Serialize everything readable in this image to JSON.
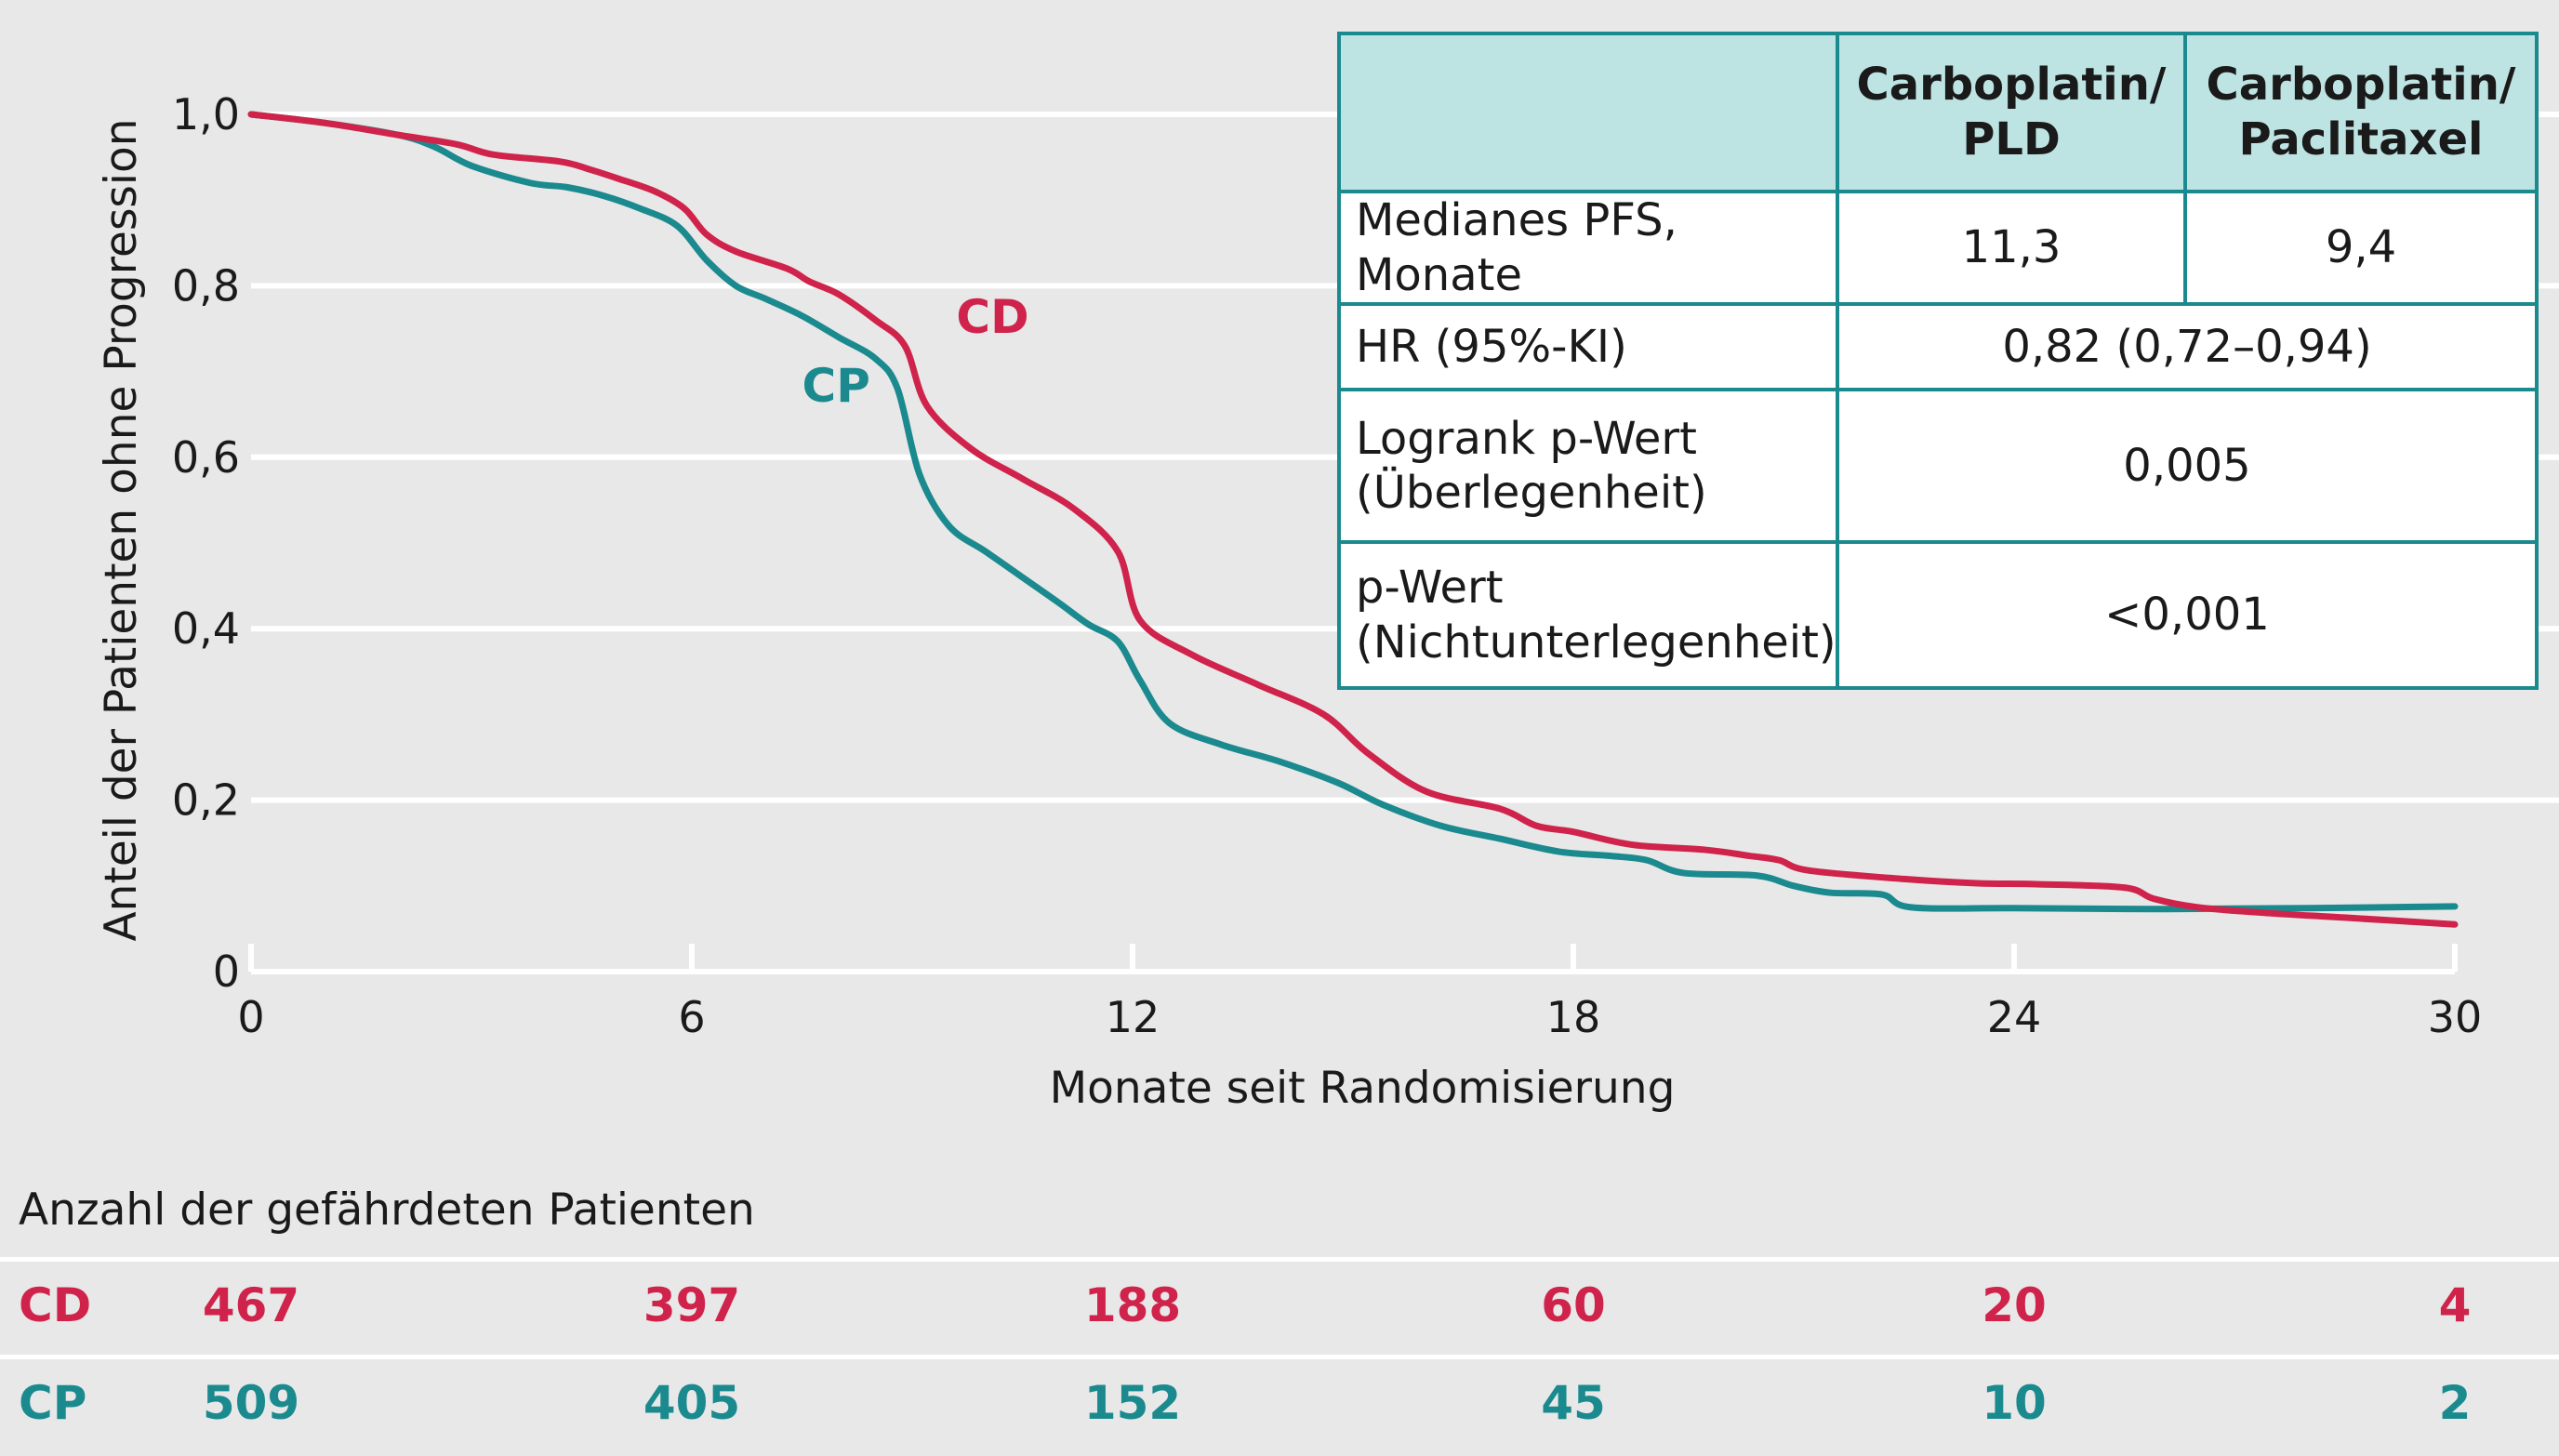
{
  "colors": {
    "CD": "#d0234b",
    "CP": "#1b8a8e",
    "plot_bg": "#e8e8e8",
    "table_header_bg": "#bde4e3",
    "table_border": "#1b8a8e"
  },
  "chart_data": {
    "type": "line",
    "xlabel": "Monate seit Randomisierung",
    "ylabel": "Anteil der Patienten ohne Progression",
    "xlim": [
      0,
      30
    ],
    "ylim": [
      0,
      1.0
    ],
    "x_ticks": [
      0,
      6,
      12,
      18,
      24,
      30
    ],
    "x_tick_labels": [
      "0",
      "6",
      "12",
      "18",
      "24",
      "30"
    ],
    "y_ticks": [
      0,
      0.2,
      0.4,
      0.6,
      0.8,
      1.0
    ],
    "y_tick_labels": [
      "0",
      "0,2",
      "0,4",
      "0,6",
      "0,8",
      "1,0"
    ],
    "grid": "horizontal",
    "series": [
      {
        "name": "CD",
        "x": [
          0,
          1.0,
          2.0,
          2.8,
          3.3,
          4.2,
          4.6,
          5.0,
          5.5,
          5.9,
          6.2,
          6.6,
          7.3,
          7.6,
          8.0,
          8.5,
          8.9,
          9.2,
          9.8,
          10.5,
          11.2,
          11.8,
          12.1,
          12.8,
          13.7,
          14.6,
          15.2,
          16.0,
          17.0,
          17.5,
          18.0,
          18.8,
          19.8,
          20.4,
          20.8,
          21.2,
          22.5,
          23.5,
          24.3,
          25.5,
          25.9,
          26.5,
          27.5,
          28.5,
          30.0
        ],
        "y": [
          1.0,
          0.99,
          0.976,
          0.965,
          0.953,
          0.945,
          0.936,
          0.925,
          0.91,
          0.89,
          0.86,
          0.84,
          0.82,
          0.805,
          0.79,
          0.76,
          0.73,
          0.66,
          0.61,
          0.575,
          0.54,
          0.49,
          0.41,
          0.37,
          0.335,
          0.3,
          0.255,
          0.21,
          0.19,
          0.17,
          0.163,
          0.148,
          0.142,
          0.135,
          0.13,
          0.118,
          0.108,
          0.103,
          0.102,
          0.098,
          0.085,
          0.075,
          0.068,
          0.063,
          0.055
        ]
      },
      {
        "name": "CP",
        "x": [
          0,
          1.0,
          2.0,
          2.5,
          3.0,
          3.8,
          4.3,
          4.8,
          5.3,
          5.8,
          6.2,
          6.6,
          7.0,
          7.5,
          8.0,
          8.5,
          8.8,
          9.1,
          9.5,
          10.0,
          10.5,
          11.0,
          11.4,
          11.8,
          12.1,
          12.5,
          13.2,
          14.0,
          14.8,
          15.4,
          16.2,
          17.0,
          17.8,
          18.5,
          19.0,
          19.5,
          20.5,
          21.0,
          21.5,
          22.2,
          22.6,
          24.0,
          26.0,
          28.0,
          30.0
        ],
        "y": [
          1.0,
          0.99,
          0.976,
          0.962,
          0.94,
          0.92,
          0.915,
          0.905,
          0.89,
          0.87,
          0.83,
          0.8,
          0.785,
          0.765,
          0.74,
          0.715,
          0.68,
          0.58,
          0.52,
          0.49,
          0.46,
          0.43,
          0.405,
          0.385,
          0.34,
          0.29,
          0.265,
          0.245,
          0.22,
          0.195,
          0.17,
          0.155,
          0.14,
          0.135,
          0.13,
          0.115,
          0.112,
          0.1,
          0.092,
          0.09,
          0.075,
          0.074,
          0.073,
          0.074,
          0.076
        ]
      }
    ],
    "annotations": [
      {
        "text": "CD",
        "series": "CD",
        "x": 9.6,
        "y": 0.745
      },
      {
        "text": "CP",
        "series": "CP",
        "x": 7.5,
        "y": 0.665
      }
    ]
  },
  "stats_table": {
    "header": [
      "",
      "Carboplatin/ PLD",
      "Carboplatin/ Paclitaxel"
    ],
    "rows": [
      {
        "label": "Medianes PFS, Monate",
        "cd": "11,3",
        "cp": "9,4"
      },
      {
        "label": "HR (95%-KI)",
        "value": "0,82 (0,72–0,94)"
      },
      {
        "label_lines": [
          "Logrank p-Wert",
          "(Überlegenheit)"
        ],
        "value": "0,005"
      },
      {
        "label_lines": [
          "p-Wert",
          "(Nichtunterlegenheit)"
        ],
        "value": "<0,001"
      }
    ]
  },
  "risk_table": {
    "title": "Anzahl der gefährdeten Patienten",
    "months": [
      0,
      6,
      12,
      18,
      24,
      30
    ],
    "rows": [
      {
        "name": "CD",
        "values": [
          "467",
          "397",
          "188",
          "60",
          "20",
          "4"
        ]
      },
      {
        "name": "CP",
        "values": [
          "509",
          "405",
          "152",
          "45",
          "10",
          "2"
        ]
      }
    ]
  }
}
